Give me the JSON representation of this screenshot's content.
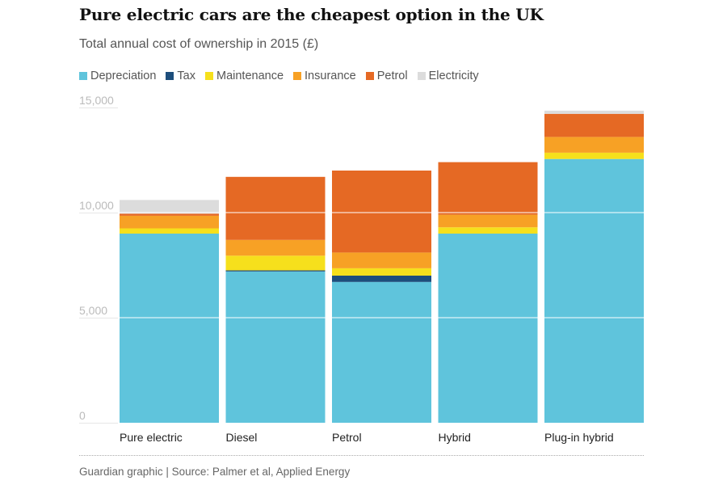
{
  "title": "Pure electric cars are the cheapest option in the UK",
  "subtitle": "Total annual cost of ownership in 2015 (£)",
  "source": "Guardian graphic | Source: Palmer et al, Applied Energy",
  "colors": {
    "depreciation": "#5fc4dc",
    "tax": "#1d4e7c",
    "maintenance": "#f6e01c",
    "insurance": "#f7a125",
    "petrol": "#e56924",
    "electricity": "#dcdcdc",
    "gridline": "#ffffff",
    "tick": "#bbbbbb"
  },
  "chart_data": {
    "type": "bar",
    "stacked": true,
    "categories": [
      "Pure electric",
      "Diesel",
      "Petrol",
      "Hybrid",
      "Plug-in hybrid"
    ],
    "series": [
      {
        "name": "Depreciation",
        "color_key": "depreciation",
        "values": [
          9000,
          7200,
          6700,
          9000,
          12550
        ]
      },
      {
        "name": "Tax",
        "color_key": "tax",
        "values": [
          0,
          50,
          300,
          0,
          0
        ]
      },
      {
        "name": "Maintenance",
        "color_key": "maintenance",
        "values": [
          250,
          700,
          350,
          300,
          300
        ]
      },
      {
        "name": "Insurance",
        "color_key": "insurance",
        "values": [
          600,
          750,
          750,
          600,
          750
        ]
      },
      {
        "name": "Petrol",
        "color_key": "petrol",
        "values": [
          100,
          3000,
          3900,
          2500,
          1100
        ]
      },
      {
        "name": "Electricity",
        "color_key": "electricity",
        "values": [
          650,
          0,
          0,
          0,
          150
        ]
      }
    ],
    "yticks": [
      0,
      5000,
      10000,
      15000
    ],
    "ytick_labels": [
      "0",
      "5,000",
      "10,000",
      "15,000"
    ],
    "ylim": [
      0,
      15000
    ],
    "grid": true,
    "legend_position": "top"
  }
}
